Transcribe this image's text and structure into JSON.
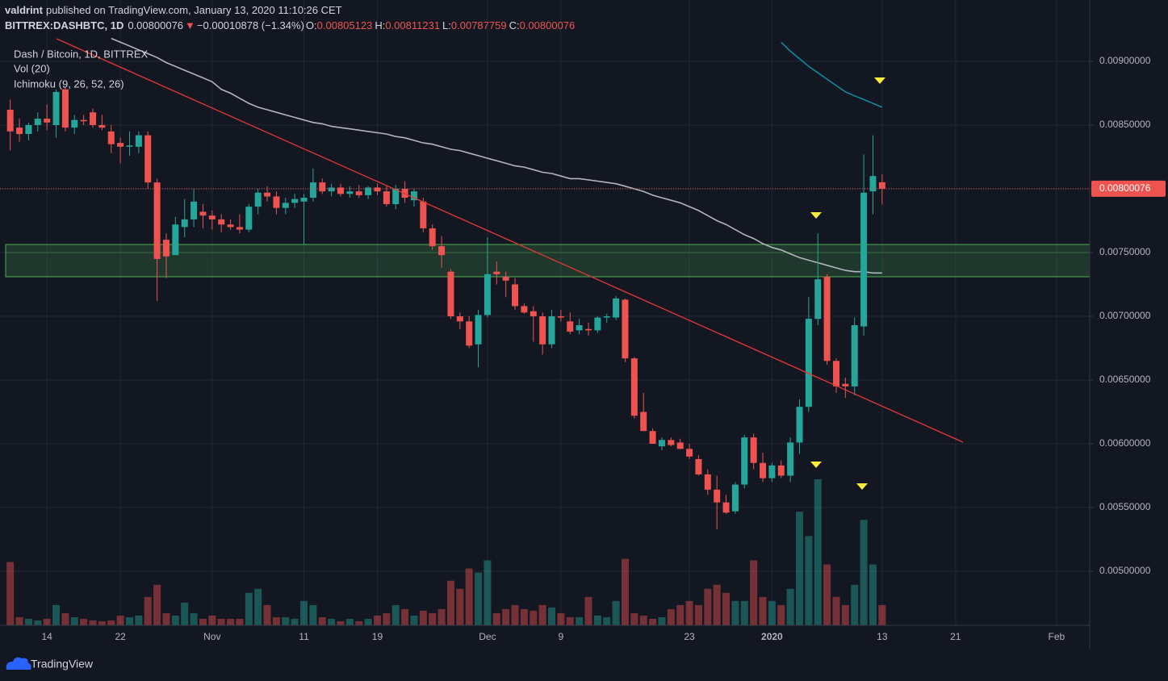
{
  "header": {
    "author": "valdrint",
    "published": "published on TradingView.com, January 13, 2020 11:10:26 CET",
    "symbol": "BITTREX:DASHBTC, 1D",
    "direction": "▼",
    "change": "−0.00010878 (−1.34%)",
    "open_label": "O:",
    "high_label": "H:",
    "low_label": "L:",
    "close_label": "C:"
  },
  "chart_data": {
    "type": "candlestick",
    "legend": [
      "Dash / Bitcoin, 1D, BITTREX",
      "Vol (20)",
      "Ichimoku (9, 26, 52, 26)"
    ],
    "categories": [
      null,
      null,
      null,
      null,
      "14",
      null,
      null,
      null,
      null,
      null,
      null,
      null,
      "22",
      null,
      null,
      null,
      null,
      null,
      null,
      null,
      null,
      null,
      "Nov",
      null,
      null,
      null,
      null,
      null,
      null,
      null,
      null,
      null,
      "11",
      null,
      null,
      null,
      null,
      null,
      null,
      null,
      "19",
      null,
      null,
      null,
      null,
      null,
      null,
      null,
      null,
      null,
      null,
      null,
      "Dec",
      null,
      null,
      null,
      null,
      null,
      null,
      null,
      "9",
      null,
      null,
      null,
      null,
      null,
      null,
      null,
      null,
      null,
      null,
      null,
      null,
      null,
      "23",
      null,
      null,
      null,
      null,
      null,
      null,
      null,
      null,
      "2020",
      null,
      null,
      null,
      null,
      null,
      null,
      null,
      null,
      null,
      null,
      null,
      "13",
      null,
      null,
      null,
      null,
      null,
      null,
      null,
      "21",
      null,
      null,
      null,
      null,
      null,
      null,
      null,
      null,
      null,
      null,
      "Feb",
      null,
      null,
      null
    ],
    "open": [
      0.00862,
      0.00848,
      0.00843,
      0.0085,
      0.00855,
      0.0085,
      0.00878,
      0.00848,
      0.00854,
      0.0086,
      0.0085,
      0.00845,
      0.00836,
      0.00833,
      0.00833,
      0.00842,
      0.00805,
      0.0076,
      0.00748,
      0.0077,
      0.00776,
      0.00782,
      0.00779,
      0.00776,
      0.00772,
      0.0077,
      0.00768,
      0.00786,
      0.00797,
      0.00794,
      0.00785,
      0.00789,
      0.0079,
      0.00793,
      0.00805,
      0.00798,
      0.00801,
      0.00796,
      0.00798,
      0.00795,
      0.00801,
      0.00798,
      0.00788,
      0.008,
      0.00791,
      0.0079,
      0.00769,
      0.00755,
      0.00735,
      0.007,
      0.00696,
      0.00678,
      0.00701,
      0.00735,
      0.00731,
      0.00725,
      0.00708,
      0.00704,
      0.007,
      0.00678,
      0.007,
      0.00696,
      0.00689,
      0.0069,
      0.00689,
      0.00699,
      0.00699,
      0.00713,
      0.00667,
      0.00625,
      0.0061,
      0.00598,
      0.00603,
      0.00601,
      0.00596,
      0.00588,
      0.00576,
      0.00564,
      0.00554,
      0.00547,
      0.00568,
      0.00605,
      0.00585,
      0.00573,
      0.00583,
      0.00575,
      0.00601,
      0.00629,
      0.00698,
      0.00731,
      0.00665,
      0.00647,
      0.00645,
      0.00692,
      0.00798,
      0.00805123,
      null,
      null,
      null,
      null,
      null,
      null,
      null,
      null,
      null,
      null,
      null,
      null,
      null,
      null,
      null,
      null,
      null,
      null,
      null,
      null,
      null,
      null
    ],
    "high": [
      0.0087,
      0.00855,
      0.00852,
      0.0086,
      0.00866,
      0.00878,
      0.0088,
      0.00858,
      0.00858,
      0.00863,
      0.00858,
      0.0085,
      0.0084,
      0.00845,
      0.00845,
      0.00845,
      0.00808,
      0.00765,
      0.00778,
      0.00792,
      0.008,
      0.00788,
      0.00783,
      0.0078,
      0.00776,
      0.0078,
      0.00788,
      0.008,
      0.00802,
      0.00798,
      0.00793,
      0.00796,
      0.00796,
      0.00816,
      0.00808,
      0.00804,
      0.00804,
      0.00802,
      0.00803,
      0.00802,
      0.00804,
      0.00802,
      0.00803,
      0.00806,
      0.008,
      0.00793,
      0.00772,
      0.00763,
      0.00737,
      0.00703,
      0.007,
      0.00705,
      0.00762,
      0.00743,
      0.00735,
      0.0073,
      0.0071,
      0.00708,
      0.00703,
      0.00705,
      0.00705,
      0.00703,
      0.00698,
      0.00695,
      0.007,
      0.00702,
      0.00716,
      0.00714,
      0.00668,
      0.0064,
      0.00612,
      0.00605,
      0.00605,
      0.00604,
      0.006,
      0.00591,
      0.0058,
      0.00575,
      0.0056,
      0.0057,
      0.00607,
      0.00608,
      0.00593,
      0.00585,
      0.00587,
      0.00605,
      0.00635,
      0.00715,
      0.00765,
      0.00733,
      0.00667,
      0.00652,
      0.00699,
      0.00827,
      0.00842,
      0.00811231,
      null,
      null,
      null,
      null,
      null,
      null,
      null,
      null,
      null,
      null,
      null,
      null,
      null,
      null,
      null,
      null,
      null,
      null,
      null,
      null,
      null,
      null
    ],
    "low": [
      0.0083,
      0.00837,
      0.00838,
      0.00845,
      0.00846,
      0.0084,
      0.00845,
      0.00843,
      0.0085,
      0.00848,
      0.00846,
      0.00828,
      0.0082,
      0.00826,
      0.00828,
      0.008,
      0.00712,
      0.0073,
      0.00748,
      0.00762,
      0.0077,
      0.00769,
      0.00768,
      0.00766,
      0.00768,
      0.00765,
      0.00766,
      0.0078,
      0.0079,
      0.0078,
      0.0078,
      0.00785,
      0.00756,
      0.0079,
      0.00796,
      0.00794,
      0.00794,
      0.00793,
      0.00793,
      0.00792,
      0.00795,
      0.00786,
      0.00784,
      0.00789,
      0.00786,
      0.00766,
      0.00752,
      0.00738,
      0.00698,
      0.0069,
      0.00675,
      0.0066,
      0.00699,
      0.00725,
      0.00715,
      0.00705,
      0.00702,
      0.0068,
      0.0067,
      0.00675,
      0.00696,
      0.00686,
      0.00686,
      0.00685,
      0.00687,
      0.00695,
      0.00697,
      0.00664,
      0.0062,
      0.0061,
      0.006,
      0.00595,
      0.00598,
      0.00596,
      0.00588,
      0.00575,
      0.0056,
      0.00533,
      0.00545,
      0.00545,
      0.00565,
      0.0058,
      0.0057,
      0.0057,
      0.00573,
      0.0057,
      0.00592,
      0.00625,
      0.00693,
      0.00662,
      0.0064,
      0.00636,
      0.00638,
      0.00685,
      0.0078,
      0.00787759,
      null,
      null,
      null,
      null,
      null,
      null,
      null,
      null,
      null,
      null,
      null,
      null,
      null,
      null,
      null,
      null,
      null,
      null,
      null,
      null,
      null,
      null
    ],
    "close": [
      0.00845,
      0.00843,
      0.0085,
      0.00855,
      0.00852,
      0.00876,
      0.00848,
      0.00854,
      0.00853,
      0.0085,
      0.00848,
      0.00835,
      0.00833,
      0.00834,
      0.00842,
      0.00805,
      0.00745,
      0.00747,
      0.00772,
      0.00776,
      0.0079,
      0.00779,
      0.00776,
      0.00772,
      0.0077,
      0.00768,
      0.00786,
      0.00797,
      0.00794,
      0.00785,
      0.00789,
      0.00792,
      0.00793,
      0.00805,
      0.00798,
      0.00801,
      0.00796,
      0.00798,
      0.00795,
      0.00801,
      0.00798,
      0.00788,
      0.008,
      0.00793,
      0.00798,
      0.00769,
      0.00755,
      0.00748,
      0.007,
      0.00696,
      0.00677,
      0.00701,
      0.00733,
      0.00733,
      0.00728,
      0.00708,
      0.00703,
      0.007,
      0.00678,
      0.007,
      0.00699,
      0.00688,
      0.00693,
      0.00689,
      0.00699,
      0.007,
      0.00714,
      0.00667,
      0.00622,
      0.0061,
      0.006,
      0.00603,
      0.00599,
      0.00596,
      0.0059,
      0.00576,
      0.00564,
      0.00554,
      0.00546,
      0.00568,
      0.00605,
      0.00585,
      0.00573,
      0.00583,
      0.00575,
      0.00601,
      0.00629,
      0.00698,
      0.00729,
      0.00665,
      0.00645,
      0.00645,
      0.00693,
      0.00797,
      0.0081,
      0.00800076,
      null,
      null,
      null,
      null,
      null,
      null,
      null,
      null,
      null,
      null,
      null,
      null,
      null,
      null,
      null,
      null,
      null,
      null,
      null,
      null,
      null,
      null
    ],
    "volume": [
      78,
      10,
      8,
      6,
      8,
      25,
      15,
      10,
      8,
      6,
      5,
      6,
      12,
      10,
      12,
      35,
      50,
      15,
      12,
      28,
      15,
      8,
      12,
      8,
      8,
      8,
      40,
      45,
      25,
      10,
      10,
      8,
      30,
      25,
      10,
      8,
      5,
      8,
      5,
      8,
      12,
      15,
      25,
      20,
      12,
      18,
      15,
      20,
      55,
      45,
      70,
      65,
      80,
      15,
      20,
      25,
      20,
      18,
      25,
      22,
      15,
      10,
      10,
      35,
      12,
      10,
      30,
      82,
      15,
      12,
      8,
      10,
      20,
      25,
      30,
      25,
      45,
      50,
      40,
      30,
      30,
      80,
      35,
      30,
      25,
      45,
      140,
      110,
      180,
      75,
      35,
      25,
      50,
      130,
      75,
      25,
      null,
      null,
      null,
      null,
      null,
      null,
      null,
      null,
      null,
      null,
      null,
      null,
      null,
      null,
      null,
      null,
      null,
      null,
      null,
      null,
      null,
      null
    ],
    "up_color": "#26a69a",
    "down_color": "#ef5350",
    "overlays": [
      {
        "color": "#b2b5be",
        "values": [
          null,
          null,
          null,
          null,
          null,
          null,
          null,
          null,
          null,
          null,
          null,
          0.00918,
          0.00915,
          0.00912,
          0.00909,
          0.00906,
          0.00903,
          0.00899,
          0.00896,
          0.00893,
          0.0089,
          0.00887,
          0.00884,
          0.00878,
          0.00875,
          0.00871,
          0.00867,
          0.00864,
          0.00862,
          0.0086,
          0.00858,
          0.00856,
          0.00854,
          0.00852,
          0.00851,
          0.00849,
          0.00848,
          0.00847,
          0.00846,
          0.00845,
          0.00844,
          0.00843,
          0.00841,
          0.0084,
          0.00838,
          0.00836,
          0.00835,
          0.00833,
          0.00831,
          0.0083,
          0.00828,
          0.00826,
          0.00824,
          0.00822,
          0.0082,
          0.00818,
          0.00817,
          0.00815,
          0.00813,
          0.00812,
          0.0081,
          0.00808,
          0.00808,
          0.00807,
          0.00806,
          0.00805,
          0.00804,
          0.00802,
          0.008,
          0.00798,
          0.00795,
          0.00793,
          0.00791,
          0.00789,
          0.00786,
          0.00783,
          0.00779,
          0.00775,
          0.00772,
          0.00768,
          0.00764,
          0.00761,
          0.00757,
          0.00754,
          0.00752,
          0.00749,
          0.00746,
          0.00744,
          0.00742,
          0.0074,
          0.00738,
          0.00736,
          0.00735,
          0.00735,
          0.00734,
          0.00734,
          null,
          null,
          null,
          null,
          null,
          null,
          null,
          null,
          null,
          null,
          null,
          null,
          null,
          null,
          null,
          null,
          null,
          null,
          null,
          null,
          null,
          null
        ]
      },
      {
        "color": "#0e8a9c",
        "values": [
          null,
          null,
          null,
          null,
          null,
          null,
          null,
          null,
          null,
          null,
          null,
          null,
          null,
          null,
          null,
          null,
          null,
          null,
          null,
          null,
          null,
          null,
          null,
          null,
          null,
          null,
          null,
          null,
          null,
          null,
          null,
          null,
          null,
          null,
          null,
          null,
          null,
          null,
          null,
          null,
          null,
          null,
          null,
          null,
          null,
          null,
          null,
          null,
          null,
          null,
          null,
          null,
          null,
          null,
          null,
          null,
          null,
          null,
          null,
          null,
          null,
          null,
          null,
          null,
          null,
          null,
          null,
          null,
          null,
          null,
          null,
          null,
          null,
          null,
          null,
          null,
          null,
          null,
          null,
          null,
          null,
          null,
          null,
          null,
          0.00915,
          0.00908,
          0.00902,
          0.00896,
          0.00891,
          0.00886,
          0.00881,
          0.00876,
          0.00873,
          0.0087,
          0.00867,
          0.00864,
          null,
          null,
          null,
          null,
          null,
          null,
          null,
          null,
          null,
          null,
          null,
          null,
          null,
          null,
          null,
          null,
          null,
          null,
          null,
          null,
          null,
          null
        ]
      }
    ],
    "ylim": [
      0.004576,
      0.009481
    ],
    "yticks": [
      {
        "value": 0.005,
        "label": "0.00500000"
      },
      {
        "value": 0.0055,
        "label": "0.00550000"
      },
      {
        "value": 0.006,
        "label": "0.00600000"
      },
      {
        "value": 0.0065,
        "label": "0.00650000"
      },
      {
        "value": 0.007,
        "label": "0.00700000"
      },
      {
        "value": 0.0075,
        "label": "0.00750000"
      },
      {
        "value": 0.008,
        "label": "0.00800000"
      },
      {
        "value": 0.0085,
        "label": "0.00850000"
      },
      {
        "value": 0.009,
        "label": "0.00900000"
      }
    ],
    "grid": true
  },
  "brand": "TradingView"
}
